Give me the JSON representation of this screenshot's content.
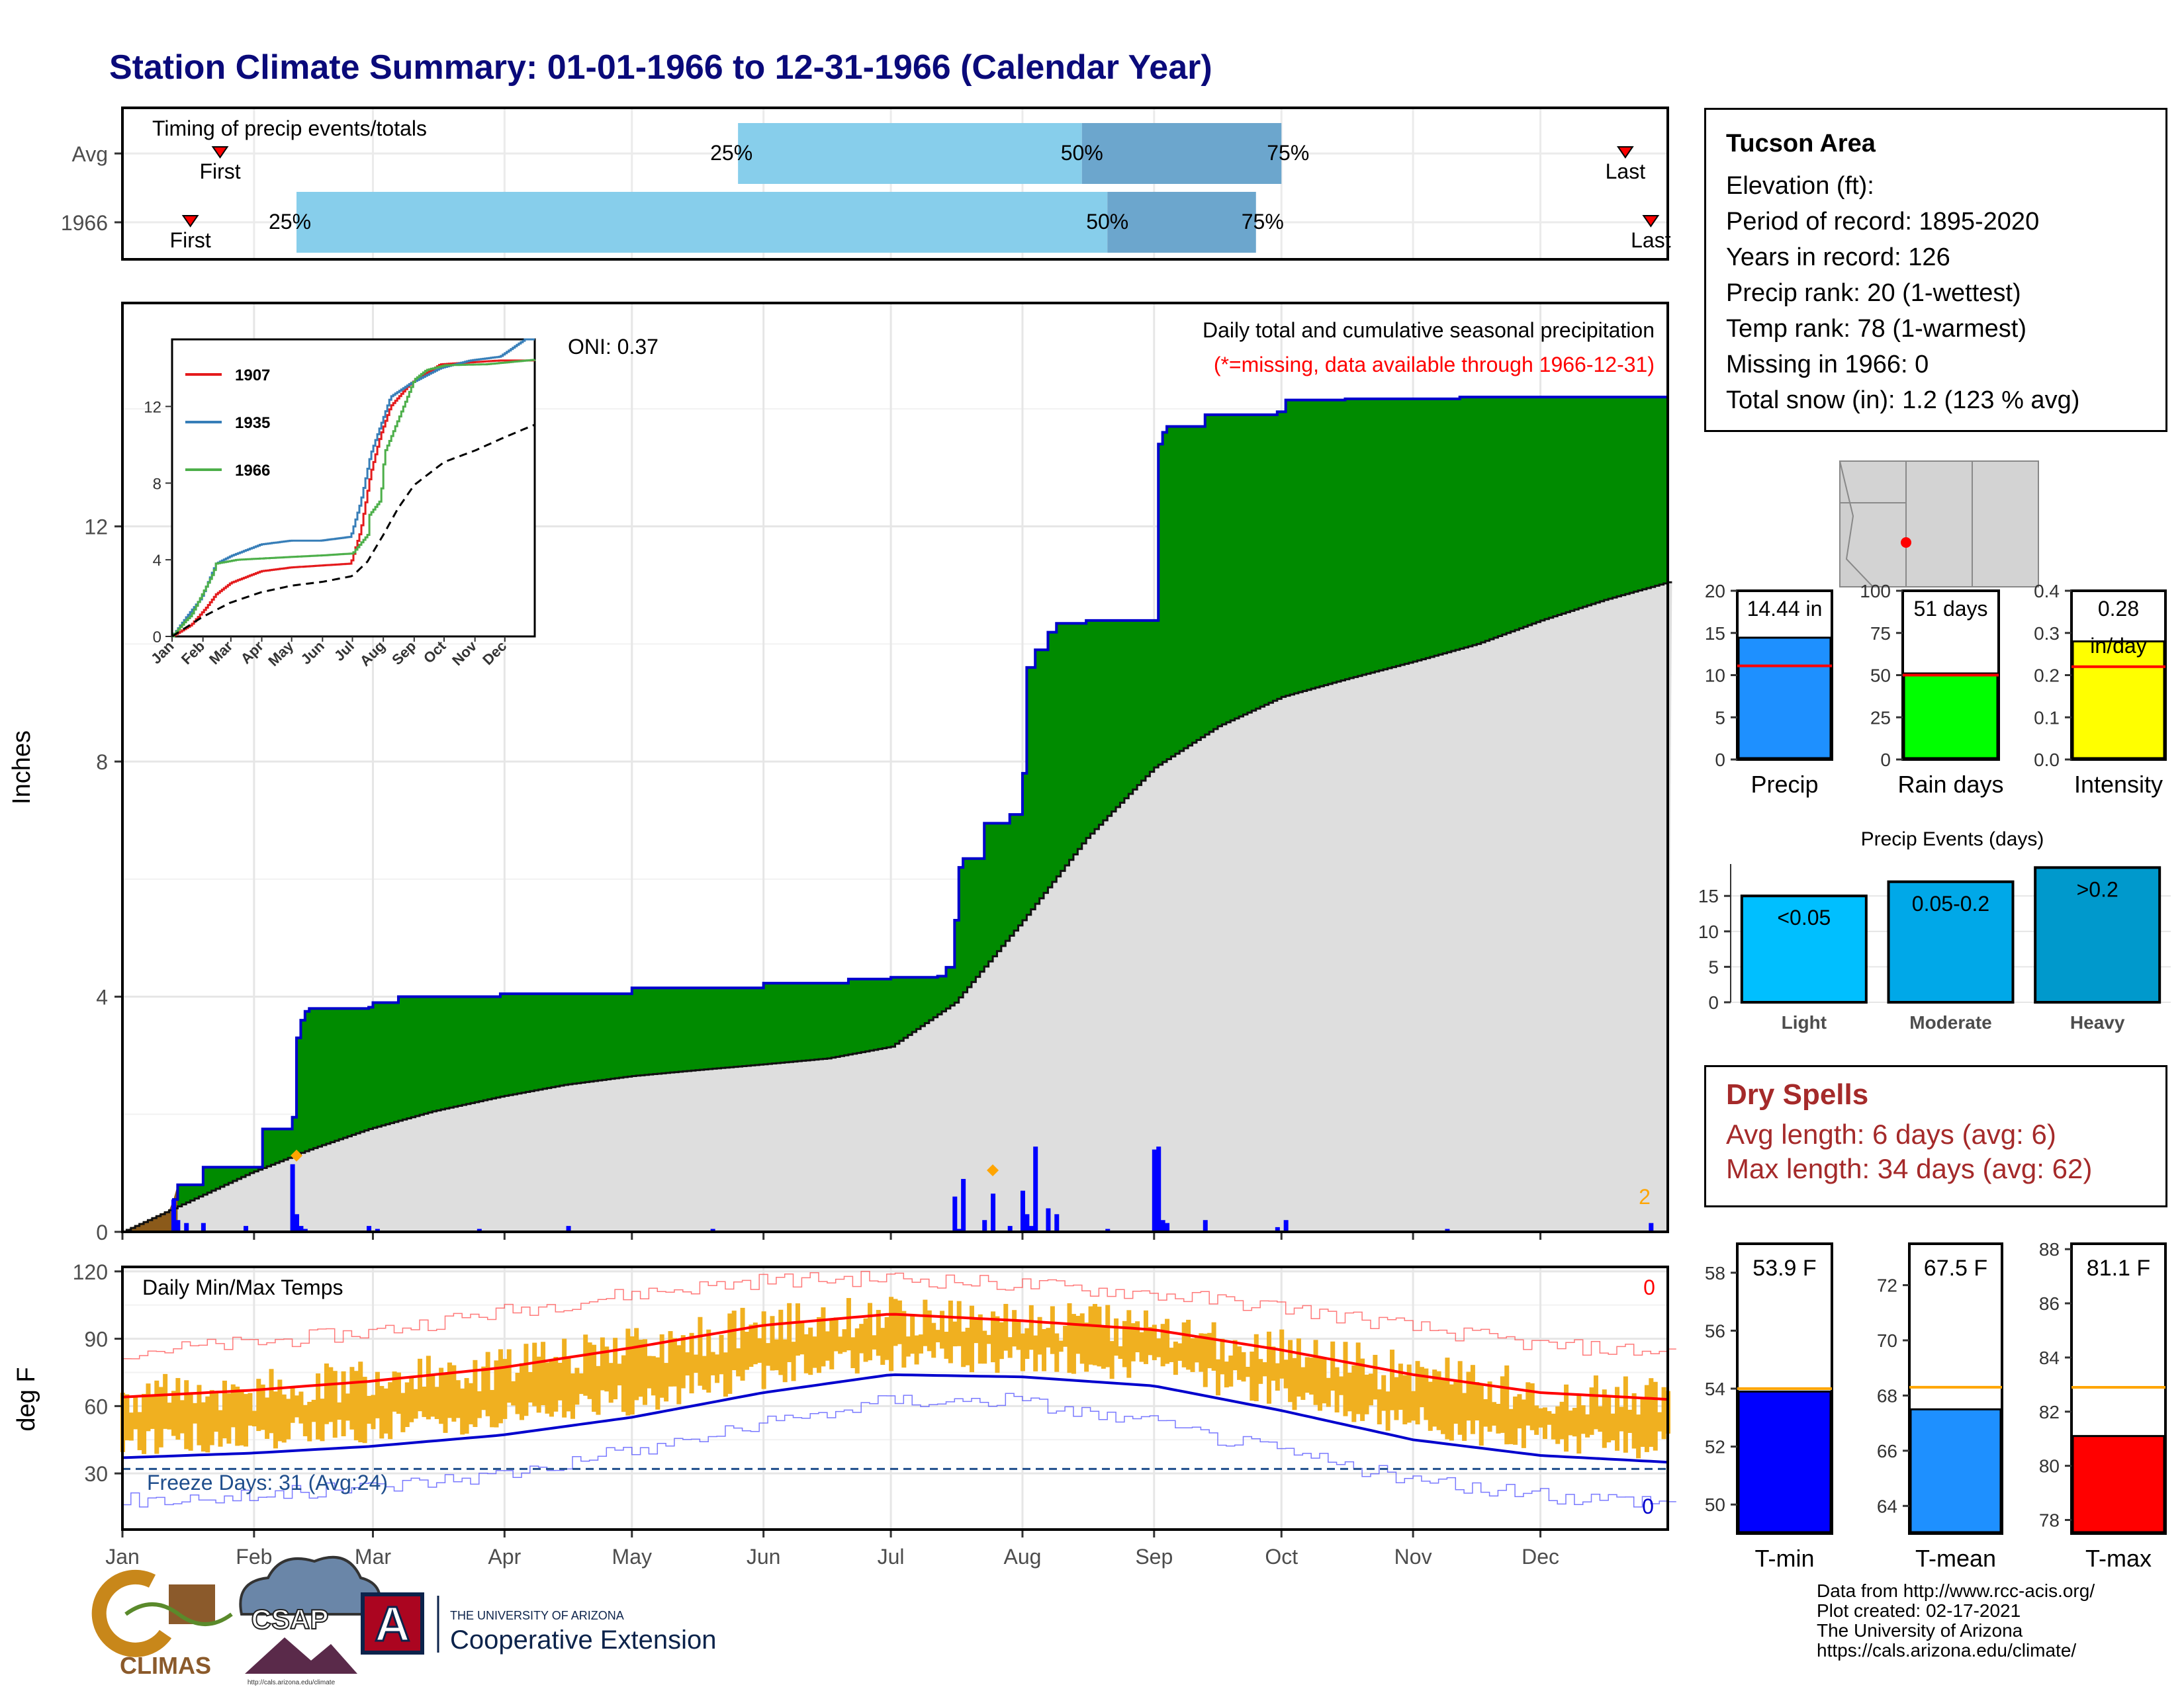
{
  "title": "Station Climate Summary: 01-01-1966 to 12-31-1966 (Calendar Year)",
  "timing": {
    "label": "Timing of precip events/totals",
    "rows": [
      {
        "name": "Avg",
        "first": "First",
        "last": "Last",
        "p25": "25%",
        "p50": "50%",
        "p75": "75%",
        "first_day": 24,
        "last_day": 355,
        "q25_day": 146,
        "q50_day": 227,
        "q75_day": 274
      },
      {
        "name": "1966",
        "first": "First",
        "last": "Last",
        "p25": "25%",
        "p50": "50%",
        "p75": "75%",
        "first_day": 17,
        "last_day": 361,
        "q25_day": 42,
        "q50_day": 233,
        "q75_day": 268
      }
    ],
    "colors": {
      "bar_light": "#87ceeb",
      "bar_dark": "#6ca6cd",
      "marker": "#ff0000"
    }
  },
  "main": {
    "ylabel": "Inches",
    "yticks": [
      "0",
      "4",
      "8",
      "12"
    ],
    "annotation_title": "Daily total and cumulative seasonal precipitation",
    "annotation_missing": "(*=missing, data available through 1966-12-31)",
    "oni": "ONI: 0.37",
    "right_count": "2",
    "colors": {
      "cum_fill": "#008b00",
      "cum_line": "#0000cd",
      "avg_fill": "#dedede",
      "daily_bar": "#0000ff",
      "marker": "#ffa500"
    }
  },
  "inset": {
    "yticks": [
      "0",
      "4",
      "8",
      "12"
    ],
    "months": [
      "Jan",
      "Feb",
      "Mar",
      "Apr",
      "May",
      "Jun",
      "Jul",
      "Aug",
      "Sep",
      "Oct",
      "Nov",
      "Dec"
    ],
    "legend": [
      {
        "name": "1907",
        "color": "#e41a1c"
      },
      {
        "name": "1935",
        "color": "#377eb8"
      },
      {
        "name": "1966",
        "color": "#4daf4a"
      }
    ]
  },
  "temps": {
    "ylabel": "deg F",
    "label": "Daily Min/Max Temps",
    "yticks": [
      "30",
      "60",
      "90",
      "120"
    ],
    "freeze": "Freeze Days: 31 (Avg:24)",
    "count_top": "0",
    "count_bottom": "0",
    "colors": {
      "range": "#f0b020",
      "max_avg": "#ff0000",
      "min_avg": "#0000cd",
      "freeze_line": "#1f4e8c"
    }
  },
  "xaxis_months": [
    "Jan",
    "Feb",
    "Mar",
    "Apr",
    "May",
    "Jun",
    "Jul",
    "Aug",
    "Sep",
    "Oct",
    "Nov",
    "Dec"
  ],
  "info": {
    "header": "Tucson Area",
    "lines": [
      "Elevation (ft):",
      "Period of record: 1895-2020",
      "Years in record: 126",
      "Precip rank: 20 (1-wettest)",
      "Temp rank: 78 (1-warmest)",
      "Missing in 1966: 0",
      "Total snow (in): 1.2 (123 % avg)"
    ]
  },
  "gauges": [
    {
      "label": "Precip",
      "value_text": "14.44 in",
      "value": 14.44,
      "avg": 11.1,
      "max": 20,
      "ticks": [
        "0",
        "5",
        "10",
        "15",
        "20"
      ],
      "color": "#1e90ff"
    },
    {
      "label": "Rain days",
      "value_text": "51 days",
      "value": 51,
      "avg": 50,
      "max": 100,
      "ticks": [
        "0",
        "25",
        "50",
        "75",
        "100"
      ],
      "color": "#00ff00"
    },
    {
      "label": "Intensity",
      "value_text": "0.28",
      "value_text2": "in/day",
      "value": 0.28,
      "avg": 0.22,
      "max": 0.4,
      "ticks": [
        "0.0",
        "0.1",
        "0.2",
        "0.3",
        "0.4"
      ],
      "color": "#ffff00"
    }
  ],
  "events": {
    "title": "Precip Events (days)",
    "yticks": [
      "0",
      "5",
      "10",
      "15"
    ],
    "bars": [
      {
        "label": "Light",
        "text": "<0.05",
        "value": 15,
        "color": "#00bfff"
      },
      {
        "label": "Moderate",
        "text": "0.05-0.2",
        "value": 17,
        "color": "#00a8e8"
      },
      {
        "label": "Heavy",
        "text": ">0.2",
        "value": 19,
        "color": "#0099cc"
      }
    ]
  },
  "dry_spells": {
    "header": "Dry Spells",
    "avg_line": "Avg length: 6 days (avg: 6)",
    "max_line": "Max length: 34 days (avg: 62)"
  },
  "temp_gauges": [
    {
      "label": "T-min",
      "value_text": "53.9 F",
      "value": 53.9,
      "avg": 54.0,
      "min": 49,
      "max": 59,
      "ticks": [
        "50",
        "52",
        "54",
        "56",
        "58"
      ],
      "color": "#0000ff"
    },
    {
      "label": "T-mean",
      "value_text": "67.5 F",
      "value": 67.5,
      "avg": 68.3,
      "min": 63,
      "max": 73.5,
      "ticks": [
        "64",
        "66",
        "68",
        "70",
        "72"
      ],
      "color": "#1e90ff"
    },
    {
      "label": "T-max",
      "value_text": "81.1 F",
      "value": 81.1,
      "avg": 82.9,
      "min": 77.5,
      "max": 88.2,
      "ticks": [
        "78",
        "80",
        "82",
        "84",
        "86",
        "88"
      ],
      "color": "#ff0000"
    }
  ],
  "credits": [
    "Data from http://www.rcc-acis.org/",
    "Plot created: 02-17-2021",
    "The University of Arizona",
    "https://cals.arizona.edu/climate/"
  ],
  "logos": {
    "climas": "CLIMAS",
    "csap": "CSAP",
    "csap_url": "http://cals.arizona.edu/climate",
    "ua_top": "THE UNIVERSITY OF ARIZONA",
    "ua_main": "Cooperative Extension",
    "ua_letter": "A"
  },
  "chart_data": [
    {
      "type": "area",
      "title": "Daily total and cumulative seasonal precipitation",
      "ylabel": "Inches",
      "ylim": [
        0,
        15.8
      ],
      "x_unit": "day of year",
      "series": [
        {
          "name": "1966",
          "x": [
            1,
            13,
            14,
            20,
            34,
            41,
            42,
            43,
            44,
            45,
            59,
            60,
            66,
            90,
            121,
            152,
            172,
            182,
            193,
            195,
            197,
            198,
            199,
            204,
            210,
            213,
            214,
            216,
            219,
            221,
            228,
            244,
            245,
            246,
            247,
            256,
            273,
            275,
            289,
            316,
            365
          ],
          "values": [
            0.0,
            0.55,
            0.8,
            1.1,
            1.75,
            1.95,
            3.3,
            3.6,
            3.75,
            3.8,
            3.82,
            3.9,
            4.0,
            4.05,
            4.15,
            4.23,
            4.3,
            4.33,
            4.35,
            4.5,
            5.3,
            6.2,
            6.35,
            6.95,
            7.1,
            7.8,
            9.6,
            9.9,
            10.2,
            10.35,
            10.4,
            10.4,
            13.4,
            13.6,
            13.7,
            13.9,
            13.95,
            14.15,
            14.17,
            14.2,
            14.44
          ]
        },
        {
          "name": "Avg",
          "x": [
            1,
            16,
            31,
            45,
            59,
            74,
            90,
            105,
            121,
            136,
            152,
            167,
            182,
            197,
            213,
            228,
            244,
            259,
            274,
            289,
            305,
            320,
            335,
            350,
            365
          ],
          "values": [
            0.0,
            0.5,
            1.0,
            1.4,
            1.75,
            2.05,
            2.3,
            2.5,
            2.65,
            2.75,
            2.85,
            2.95,
            3.15,
            3.9,
            5.3,
            6.7,
            7.9,
            8.6,
            9.1,
            9.4,
            9.7,
            10.0,
            10.4,
            10.75,
            11.05
          ]
        }
      ],
      "daily": {
        "x": [
          13,
          14,
          16,
          20,
          30,
          41,
          42,
          43,
          44,
          59,
          61,
          85,
          106,
          140,
          197,
          198,
          199,
          204,
          206,
          210,
          213,
          214,
          215,
          216,
          219,
          221,
          233,
          244,
          245,
          246,
          247,
          256,
          273,
          275,
          313,
          361
        ],
        "values": [
          0.55,
          0.2,
          0.15,
          0.15,
          0.1,
          1.15,
          0.3,
          0.1,
          0.05,
          0.1,
          0.05,
          0.05,
          0.1,
          0.05,
          0.6,
          0.05,
          0.9,
          0.2,
          0.65,
          0.1,
          0.7,
          0.3,
          0.1,
          1.45,
          0.4,
          0.3,
          0.05,
          1.4,
          1.45,
          0.2,
          0.15,
          0.2,
          0.08,
          0.2,
          0.05,
          0.15
        ]
      }
    },
    {
      "type": "line",
      "title": "",
      "ylim": [
        0,
        15.5
      ],
      "categories": [
        "Jan",
        "Feb",
        "Mar",
        "Apr",
        "May",
        "Jun",
        "Jul",
        "Aug",
        "Sep",
        "Oct",
        "Nov",
        "Dec"
      ],
      "series": [
        {
          "name": "1907",
          "x": [
            1,
            20,
            35,
            45,
            60,
            90,
            120,
            150,
            180,
            190,
            200,
            210,
            220,
            240,
            270,
            300,
            330,
            365
          ],
          "values": [
            0,
            0.6,
            1.5,
            2.2,
            2.8,
            3.4,
            3.6,
            3.7,
            3.8,
            5.5,
            8.5,
            10.5,
            12.0,
            13.2,
            14.2,
            14.3,
            14.4,
            14.4
          ]
        },
        {
          "name": "1935",
          "x": [
            1,
            15,
            30,
            45,
            60,
            90,
            120,
            150,
            180,
            190,
            200,
            210,
            220,
            240,
            270,
            300,
            330,
            355,
            365
          ],
          "values": [
            0,
            1.0,
            2.0,
            3.8,
            4.2,
            4.8,
            5.0,
            5.0,
            5.2,
            7.0,
            9.5,
            11.0,
            12.5,
            13.2,
            14.0,
            14.4,
            14.6,
            15.5,
            15.5
          ]
        },
        {
          "name": "1966",
          "x": [
            1,
            14,
            20,
            42,
            45,
            66,
            121,
            152,
            182,
            197,
            199,
            210,
            214,
            219,
            244,
            256,
            275,
            316,
            365
          ],
          "values": [
            0,
            0.8,
            1.1,
            3.3,
            3.8,
            4.0,
            4.15,
            4.23,
            4.33,
            5.3,
            6.35,
            7.1,
            9.6,
            10.2,
            13.4,
            13.9,
            14.15,
            14.2,
            14.44
          ]
        },
        {
          "name": "Avg",
          "x": [
            1,
            31,
            59,
            90,
            121,
            152,
            182,
            197,
            213,
            228,
            244,
            274,
            305,
            335,
            365
          ],
          "values": [
            0,
            1.0,
            1.75,
            2.3,
            2.65,
            2.85,
            3.15,
            3.9,
            5.3,
            6.7,
            7.9,
            9.1,
            9.7,
            10.4,
            11.05
          ]
        }
      ]
    },
    {
      "type": "line",
      "title": "Daily Min/Max Temps",
      "ylabel": "deg F",
      "ylim": [
        5,
        122
      ],
      "series": [
        {
          "name": "Avg max",
          "x": [
            1,
            31,
            59,
            90,
            121,
            152,
            182,
            213,
            244,
            274,
            305,
            335,
            365
          ],
          "values": [
            64,
            67,
            71,
            77,
            86,
            96,
            101,
            98,
            94,
            85,
            74,
            66,
            63
          ]
        },
        {
          "name": "Avg min",
          "x": [
            1,
            31,
            59,
            90,
            121,
            152,
            182,
            213,
            244,
            274,
            305,
            335,
            365
          ],
          "values": [
            37,
            39,
            42,
            47,
            55,
            66,
            74,
            73,
            69,
            58,
            45,
            38,
            35
          ]
        },
        {
          "name": "Record high",
          "x": [
            1,
            31,
            59,
            90,
            121,
            152,
            182,
            213,
            244,
            274,
            305,
            335,
            365
          ],
          "values": [
            84,
            88,
            93,
            102,
            110,
            116,
            117,
            114,
            110,
            104,
            95,
            87,
            84
          ]
        },
        {
          "name": "Record low",
          "x": [
            1,
            31,
            59,
            90,
            121,
            152,
            182,
            213,
            244,
            274,
            305,
            335,
            365
          ],
          "values": [
            18,
            20,
            24,
            30,
            40,
            52,
            63,
            62,
            52,
            40,
            27,
            20,
            18
          ]
        }
      ],
      "freeze_threshold": 32
    },
    {
      "type": "bar",
      "title": "Precip Events (days)",
      "categories": [
        "Light",
        "Moderate",
        "Heavy"
      ],
      "values": [
        15,
        17,
        19
      ],
      "ylim": [
        0,
        19.5
      ]
    }
  ]
}
